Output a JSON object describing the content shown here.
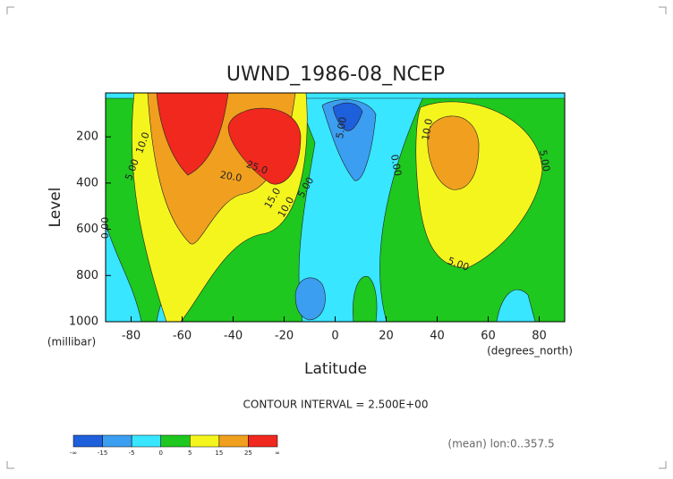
{
  "chart_data": {
    "type": "contour",
    "title": "UWND_1986-08_NCEP",
    "x_label": "Latitude",
    "x_unit": "(degrees_north)",
    "y_label": "Level",
    "y_unit": "(millibar)",
    "xlim": [
      -90,
      90
    ],
    "xticks": [
      -80,
      -60,
      -40,
      -20,
      0,
      20,
      40,
      60,
      80
    ],
    "ylim": [
      1000,
      10
    ],
    "yticks": [
      200,
      400,
      600,
      800,
      1000
    ],
    "note": "CONTOUR INTERVAL = 2.500E+00",
    "footer": "(mean) lon:0..357.5",
    "contour_labels": [
      "10.0",
      "5.00",
      "0.00",
      "20.0",
      "25.0",
      "15.0",
      "10.0",
      "5.00",
      "5.00",
      "0.00",
      "10.0",
      "5.00",
      "5.00"
    ],
    "colorbar_ticks": [
      "-∞",
      -15,
      -5,
      0,
      5,
      15,
      25,
      "∞"
    ],
    "colorbar_colors": [
      "#1e5fdc",
      "#3c9ef0",
      "#38e6ff",
      "#1ec81e",
      "#f5f51e",
      "#f0a01e",
      "#f0281e"
    ]
  }
}
